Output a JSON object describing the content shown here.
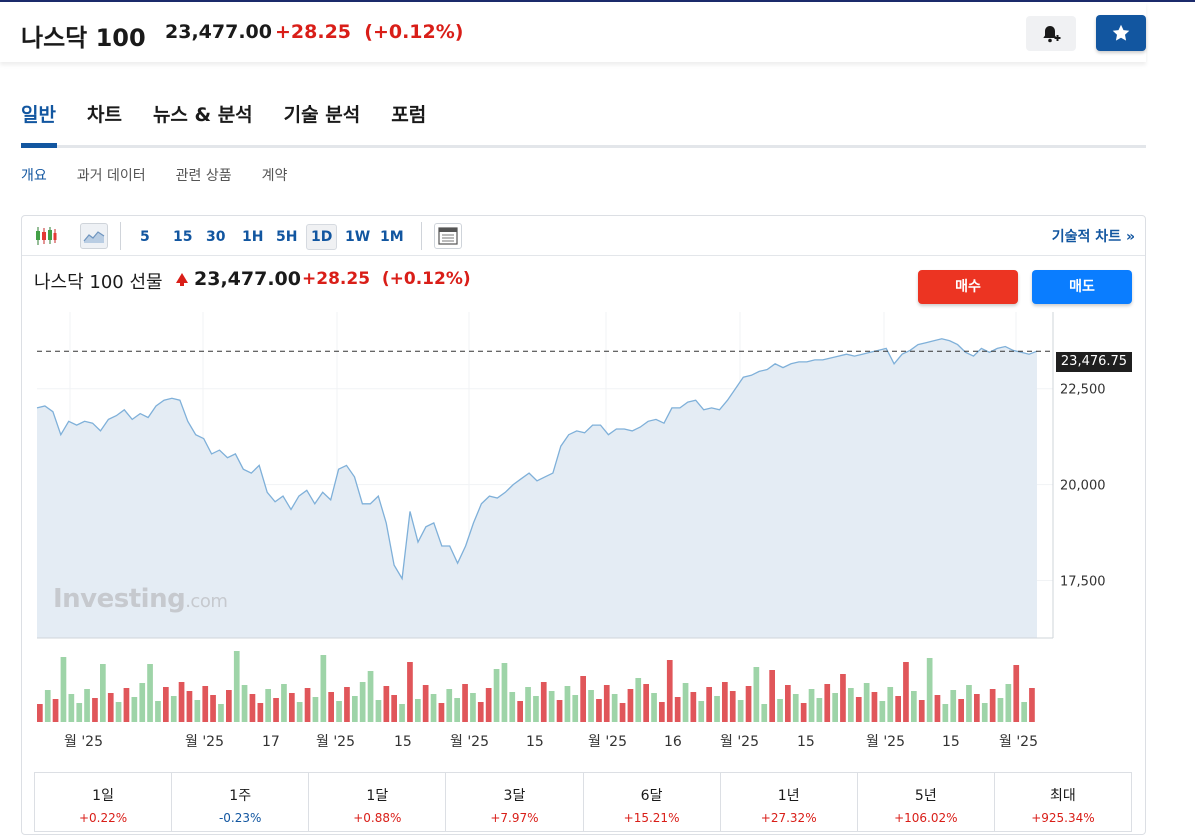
{
  "header": {
    "title": "나스닥 100",
    "price": "23,477.00",
    "change": "+28.25",
    "change_pct": "(+0.12%)",
    "alert_icon": "bell-plus-icon",
    "watch_icon": "star-icon"
  },
  "tabs": [
    {
      "label": "일반",
      "active": true
    },
    {
      "label": "차트",
      "active": false
    },
    {
      "label": "뉴스 & 분석",
      "active": false
    },
    {
      "label": "기술 분석",
      "active": false
    },
    {
      "label": "포럼",
      "active": false
    }
  ],
  "subtabs": [
    {
      "label": "개요",
      "active": true
    },
    {
      "label": "과거 데이터",
      "active": false
    },
    {
      "label": "관련 상품",
      "active": false
    },
    {
      "label": "계약",
      "active": false
    }
  ],
  "toolbar": {
    "timeframes": [
      {
        "label": "5",
        "selected": false
      },
      {
        "label": "15",
        "selected": false
      },
      {
        "label": "30",
        "selected": false
      },
      {
        "label": "1H",
        "selected": false
      },
      {
        "label": "5H",
        "selected": false
      },
      {
        "label": "1D",
        "selected": true
      },
      {
        "label": "1W",
        "selected": false
      },
      {
        "label": "1M",
        "selected": false
      }
    ],
    "tech_chart_label": "기술적 차트 »"
  },
  "chart": {
    "title": "나스닥 100 선물",
    "price": "23,477.00",
    "change": "+28.25",
    "change_pct": "(+0.12%)",
    "buy_label": "매수",
    "sell_label": "매도",
    "current_price_label": "23,476.75",
    "watermark_main": "Investing",
    "watermark_suffix": ".com",
    "colors": {
      "line": "#7fb0d9",
      "area": "#e4ecf4",
      "up": "#e0565a",
      "down": "#9ed4a8"
    }
  },
  "chart_data": {
    "type": "area",
    "title": "",
    "y_ticks": [
      "22,500",
      "20,000",
      "17,500"
    ],
    "ylim": [
      16000,
      24500
    ],
    "x_ticks": [
      "월 '25",
      "월 '25",
      "17",
      "월 '25",
      "15",
      "월 '25",
      "15",
      "월 '25",
      "16",
      "월 '25",
      "15",
      "월 '25",
      "15",
      "월 '25"
    ],
    "current_price": 23476.75,
    "values": [
      22000,
      22050,
      21900,
      21300,
      21650,
      21550,
      21650,
      21600,
      21400,
      21700,
      21800,
      21950,
      21700,
      21850,
      21750,
      22050,
      22200,
      22250,
      22200,
      21650,
      21300,
      21200,
      20800,
      20900,
      20700,
      20800,
      20400,
      20300,
      20500,
      19800,
      19550,
      19700,
      19350,
      19700,
      19850,
      19500,
      19800,
      19600,
      20400,
      20500,
      20200,
      19500,
      19500,
      19700,
      19000,
      17900,
      17550,
      19300,
      18500,
      18900,
      19000,
      18400,
      18400,
      17950,
      18400,
      19000,
      19500,
      19700,
      19650,
      19800,
      20000,
      20150,
      20300,
      20100,
      20200,
      20300,
      21000,
      21300,
      21400,
      21350,
      21550,
      21550,
      21300,
      21450,
      21450,
      21400,
      21500,
      21650,
      21700,
      21600,
      22000,
      22000,
      22150,
      22200,
      21950,
      22000,
      21950,
      22200,
      22500,
      22800,
      22850,
      22950,
      23000,
      23150,
      23050,
      23150,
      23200,
      23200,
      23250,
      23250,
      23300,
      23350,
      23400,
      23350,
      23400,
      23450,
      23500,
      23550,
      23150,
      23400,
      23500,
      23650,
      23700,
      23750,
      23800,
      23750,
      23650,
      23450,
      23350,
      23550,
      23450,
      23550,
      23600,
      23500,
      23450,
      23400,
      23477
    ],
    "volume_up": [
      true,
      false,
      true,
      false,
      false,
      false,
      false,
      true,
      false,
      true,
      false,
      true,
      false,
      false,
      false,
      false,
      true,
      false,
      true,
      true,
      false,
      true,
      true,
      false,
      true,
      false,
      false,
      true,
      true,
      false,
      true,
      false,
      true,
      false,
      true,
      false,
      false,
      true,
      false,
      true,
      false,
      false,
      false,
      false,
      true,
      true,
      false,
      true,
      false,
      true,
      false,
      true,
      false,
      false,
      true,
      false,
      true,
      true,
      false,
      false,
      false,
      true,
      false,
      false,
      true,
      false,
      true,
      false,
      false,
      true,
      false,
      true,
      true,
      false,
      true,
      true,
      false,
      true,
      false,
      true,
      true,
      true,
      false,
      true,
      false,
      true,
      false,
      true,
      true,
      false,
      true,
      false,
      false,
      true,
      false,
      true,
      false,
      true,
      false,
      false,
      true,
      false,
      true,
      false,
      true,
      false,
      true,
      false,
      false,
      true,
      true,
      false,
      true,
      false,
      true,
      false,
      false,
      true,
      false,
      true,
      false,
      true,
      false,
      false,
      true,
      false,
      true
    ]
  },
  "performance": [
    {
      "label": "1일",
      "value": "+0.22%",
      "sign": "pos"
    },
    {
      "label": "1주",
      "value": "-0.23%",
      "sign": "neg"
    },
    {
      "label": "1달",
      "value": "+0.88%",
      "sign": "pos"
    },
    {
      "label": "3달",
      "value": "+7.97%",
      "sign": "pos"
    },
    {
      "label": "6달",
      "value": "+15.21%",
      "sign": "pos"
    },
    {
      "label": "1년",
      "value": "+27.32%",
      "sign": "pos"
    },
    {
      "label": "5년",
      "value": "+106.02%",
      "sign": "pos"
    },
    {
      "label": "최대",
      "value": "+925.34%",
      "sign": "pos"
    }
  ]
}
